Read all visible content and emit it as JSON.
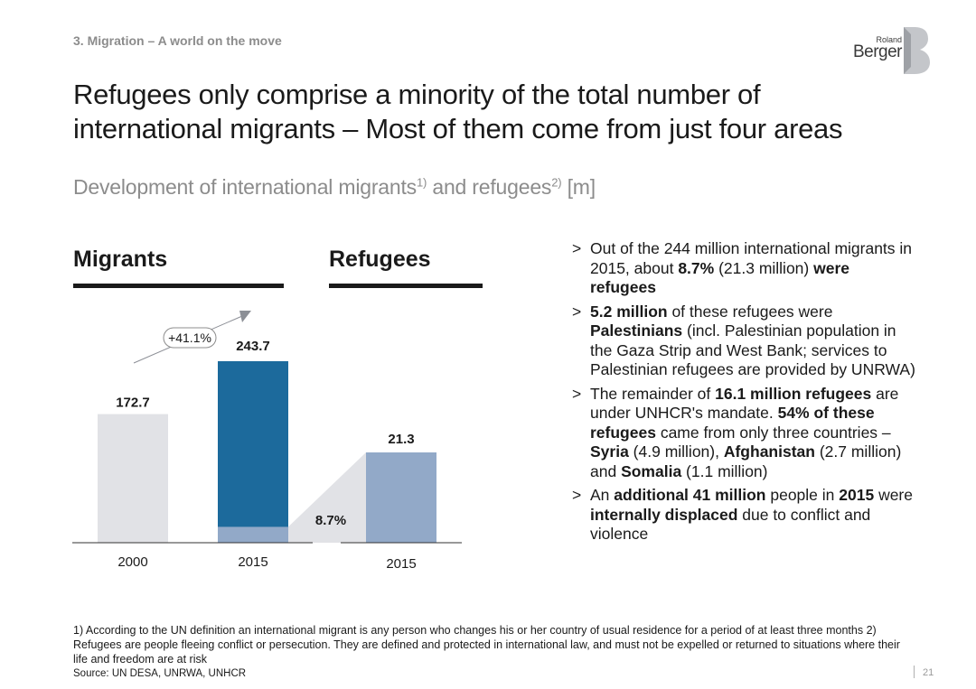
{
  "header": {
    "section_label": "3. Migration – A world on the move",
    "logo": {
      "line1": "Roland",
      "line2": "Berger"
    }
  },
  "title": "Refugees only comprise a minority of the total number of international migrants – Most of them come from just four areas",
  "subtitle": {
    "text": "Development of international migrants",
    "sup1": "1)",
    "mid": " and refugees",
    "sup2": "2)",
    "unit": " [m]"
  },
  "panels": {
    "migrants_header": "Migrants",
    "refugees_header": "Refugees"
  },
  "colors": {
    "migrants_2000": "#e1e2e6",
    "migrants_2015": "#1c6a9c",
    "refugee_share": "#92a9c8",
    "refugees_2015": "#92a9c8",
    "arrow": "#8c8f96"
  },
  "chart_data": [
    {
      "type": "bar",
      "panel": "Migrants",
      "categories": [
        "2000",
        "2015"
      ],
      "values": [
        172.7,
        243.7
      ],
      "value_labels": [
        "172.7",
        "243.7"
      ],
      "highlight_segment_in_2015": 21.3,
      "annotation": "+41.1%"
    },
    {
      "type": "bar",
      "panel": "Refugees",
      "categories": [
        "2015"
      ],
      "values": [
        21.3
      ],
      "value_labels": [
        "21.3"
      ],
      "share_label": "8.7%"
    }
  ],
  "bullets": [
    [
      {
        "t": "Out of the 244 million international migrants in 2015, about ",
        "b": false
      },
      {
        "t": "8.7%",
        "b": true
      },
      {
        "t": " (21.3 million) ",
        "b": false
      },
      {
        "t": "were refugees",
        "b": true
      }
    ],
    [
      {
        "t": "5.2 million",
        "b": true
      },
      {
        "t": " of these refugees were ",
        "b": false
      },
      {
        "t": "Palestinians",
        "b": true
      },
      {
        "t": " (incl. Palestinian population in the Gaza Strip and West Bank; services to Palestinian refugees are provided by UNRWA)",
        "b": false
      }
    ],
    [
      {
        "t": "The remainder of ",
        "b": false
      },
      {
        "t": "16.1 million refugees",
        "b": true
      },
      {
        "t": " are under UNHCR's mandate. ",
        "b": false
      },
      {
        "t": "54% of these refugees",
        "b": true
      },
      {
        "t": " came from only three countries – ",
        "b": false
      },
      {
        "t": "Syria",
        "b": true
      },
      {
        "t": " (4.9 million), ",
        "b": false
      },
      {
        "t": "Afghanistan",
        "b": true
      },
      {
        "t": " (2.7 million) and ",
        "b": false
      },
      {
        "t": "Somalia",
        "b": true
      },
      {
        "t": " (1.1 million)",
        "b": false
      }
    ],
    [
      {
        "t": "An ",
        "b": false
      },
      {
        "t": "additional 41 million",
        "b": true
      },
      {
        "t": " people in ",
        "b": false
      },
      {
        "t": "2015",
        "b": true
      },
      {
        "t": " were ",
        "b": false
      },
      {
        "t": "internally displaced",
        "b": true
      },
      {
        "t": " due to conflict and violence",
        "b": false
      }
    ]
  ],
  "footnote": "1) According to the UN definition an international migrant is any person who changes his or her country of usual residence for a period of at least three months  2) Refugees are people fleeing conflict or persecution. They are defined and protected in international law, and must not be expelled or returned to situations where their life and freedom are at risk",
  "source": "Source: UN DESA, UNRWA, UNHCR",
  "page_number": "21"
}
